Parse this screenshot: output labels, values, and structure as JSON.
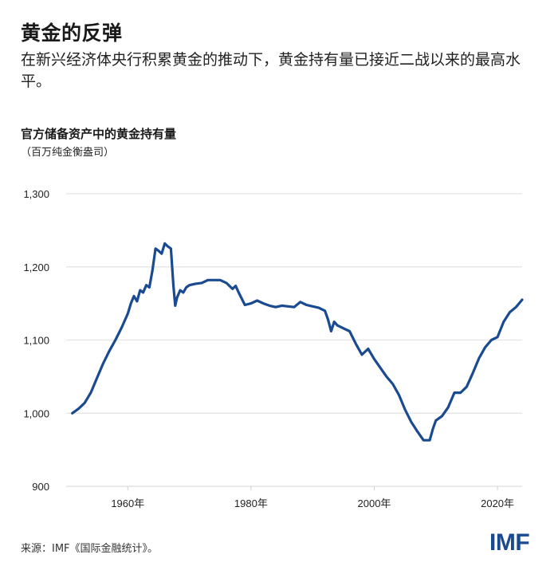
{
  "header": {
    "title": "黄金的反弹",
    "subtitle": "在新兴经济体央行积累黄金的推动下，黄金持有量已接近二战以来的最高水平。"
  },
  "chart": {
    "title": "官方储备资产中的黄金持有量",
    "unit": "（百万纯金衡盎司）"
  },
  "footer": {
    "source": "来源：IMF《国际金融统计》。",
    "logo": "IMF"
  },
  "colors": {
    "line": "#1a4a8f",
    "grid": "#e3e3e3",
    "logo": "#1a4a8f"
  },
  "chart_data": {
    "type": "line",
    "title": "官方储备资产中的黄金持有量",
    "subtitle": "（百万纯金衡盎司）",
    "xlabel": "",
    "ylabel": "百万纯金衡盎司",
    "ylim": [
      900,
      1300
    ],
    "xlim": [
      1950,
      2024
    ],
    "yticks": [
      900,
      1000,
      1100,
      1200,
      1300
    ],
    "ytick_labels": [
      "900",
      "1,000",
      "1,100",
      "1,200",
      "1,300"
    ],
    "xticks": [
      1960,
      1980,
      2000,
      2020
    ],
    "xtick_labels": [
      "1960年",
      "1980年",
      "2000年",
      "2020年"
    ],
    "grid": true,
    "legend": null,
    "series": [
      {
        "name": "黄金持有量",
        "x": [
          1951,
          1952,
          1953,
          1954,
          1955,
          1956,
          1957,
          1958,
          1959,
          1960,
          1960.5,
          1961,
          1961.5,
          1962,
          1962.5,
          1963,
          1963.5,
          1964,
          1964.5,
          1965,
          1965.5,
          1966,
          1966.5,
          1967,
          1967.4,
          1967.7,
          1968,
          1968.5,
          1969,
          1969.5,
          1970,
          1971,
          1972,
          1973,
          1974,
          1975,
          1976,
          1977,
          1977.5,
          1978,
          1979,
          1980,
          1981,
          1982,
          1983,
          1984,
          1985,
          1986,
          1987,
          1988,
          1989,
          1990,
          1991,
          1992,
          1992.5,
          1993,
          1993.5,
          1994,
          1995,
          1996,
          1997,
          1998,
          1999,
          2000,
          2001,
          2002,
          2003,
          2004,
          2005,
          2006,
          2007,
          2008,
          2009,
          2009.5,
          2010,
          2011,
          2012,
          2013,
          2014,
          2015,
          2016,
          2017,
          2018,
          2019,
          2020,
          2021,
          2022,
          2023,
          2024
        ],
        "values": [
          1000,
          1006,
          1014,
          1028,
          1048,
          1068,
          1085,
          1100,
          1117,
          1136,
          1150,
          1160,
          1153,
          1168,
          1165,
          1175,
          1172,
          1195,
          1225,
          1222,
          1218,
          1232,
          1228,
          1225,
          1175,
          1147,
          1158,
          1168,
          1165,
          1172,
          1175,
          1177,
          1178,
          1182,
          1182,
          1182,
          1178,
          1170,
          1174,
          1165,
          1148,
          1150,
          1154,
          1150,
          1147,
          1145,
          1147,
          1146,
          1145,
          1152,
          1148,
          1146,
          1144,
          1140,
          1128,
          1112,
          1125,
          1120,
          1116,
          1112,
          1095,
          1080,
          1088,
          1074,
          1062,
          1050,
          1040,
          1025,
          1005,
          988,
          975,
          963,
          963,
          978,
          990,
          996,
          1008,
          1028,
          1028,
          1036,
          1055,
          1075,
          1090,
          1100,
          1104,
          1125,
          1138,
          1145,
          1155
        ]
      }
    ]
  }
}
